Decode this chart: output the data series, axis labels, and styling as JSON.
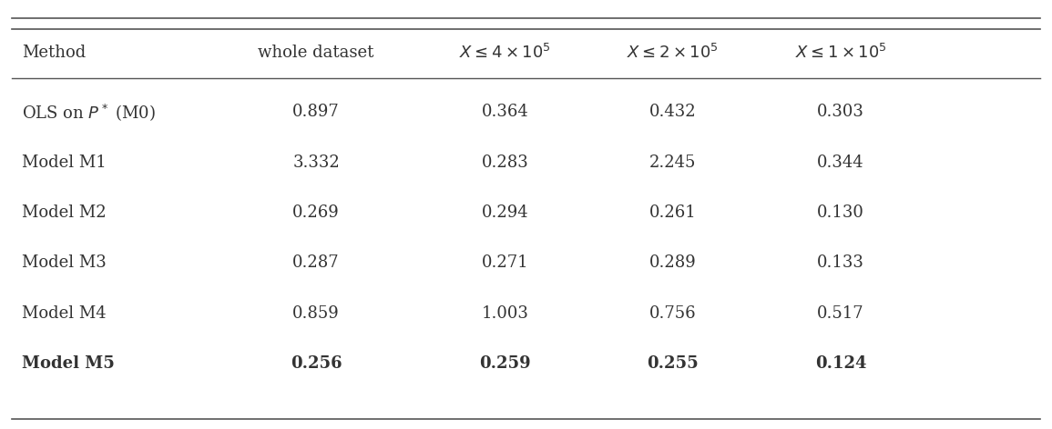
{
  "col_headers": [
    "Method",
    "whole dataset",
    "$X \\leq 4 \\times 10^5$",
    "$X \\leq 2 \\times 10^5$",
    "$X \\leq 1 \\times 10^5$"
  ],
  "col_headers_display": [
    "Method",
    "whole dataset",
    "X ≤ 4 × 10⁵",
    "X ≤ 2 × 10⁵",
    "X ≤ 1 × 10⁵"
  ],
  "rows": [
    [
      "OLS on $P^*$ (M0)",
      "0.897",
      "0.364",
      "0.432",
      "0.303"
    ],
    [
      "Model M1",
      "3.332",
      "0.283",
      "2.245",
      "0.344"
    ],
    [
      "Model M2",
      "0.269",
      "0.294",
      "0.261",
      "0.130"
    ],
    [
      "Model M3",
      "0.287",
      "0.271",
      "0.289",
      "0.133"
    ],
    [
      "Model M4",
      "0.859",
      "1.003",
      "0.756",
      "0.517"
    ],
    [
      "Model M5",
      "0.256",
      "0.259",
      "0.255",
      "0.124"
    ]
  ],
  "bold_row": 5,
  "background_color": "#ffffff",
  "text_color": "#333333",
  "font_size": 13,
  "header_font_size": 13,
  "figsize": [
    11.55,
    4.72
  ],
  "dpi": 100
}
